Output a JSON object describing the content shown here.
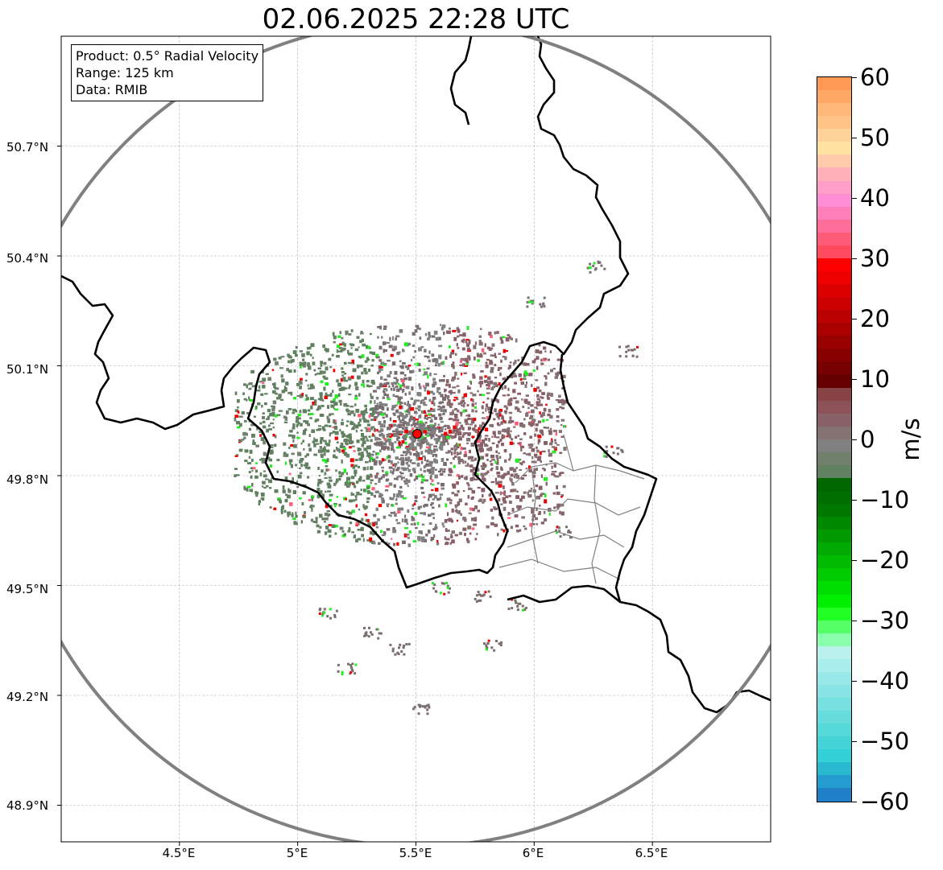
{
  "title": "02.06.2025 22:28 UTC",
  "info_box": {
    "product": "Product: 0.5° Radial Velocity",
    "range": "Range: 125 km",
    "data_source": "Data: RMIB"
  },
  "latitude_labels": [
    "50.7°N",
    "50.4°N",
    "50.1°N",
    "49.8°N",
    "49.5°N",
    "49.2°N",
    "48.9°N"
  ],
  "longitude_labels": [
    "4.5°E",
    "5°E",
    "5.5°E",
    "6°E",
    "6.5°E"
  ],
  "map": {
    "radar_site": {
      "lon": 5.505,
      "lat": 49.914
    },
    "extent": {
      "lon_min": 4.0,
      "lon_max": 7.0,
      "lat_min": 48.8,
      "lat_max": 51.0
    },
    "range_ring_color": "#808080",
    "border_color": "#000000",
    "province_color": "#808080",
    "gridlines": true
  },
  "colorbar": {
    "unit": "m/s",
    "min": -60,
    "max": 60,
    "tick_labels": [
      "60",
      "50",
      "40",
      "30",
      "20",
      "10",
      "0",
      "−10",
      "−20",
      "−30",
      "−40",
      "−50",
      "−60"
    ],
    "colors_top_to_bottom": [
      "#ff9955",
      "#ffa866",
      "#ffb877",
      "#ffc488",
      "#ffd49a",
      "#ffe3a0",
      "#ffcbaa",
      "#ffb0b8",
      "#ff9fc8",
      "#ff8ed6",
      "#ff80b8",
      "#ff6e9a",
      "#ff5a78",
      "#ff4a60",
      "#ff0000",
      "#ee0000",
      "#dd0000",
      "#cc0000",
      "#bb0000",
      "#aa0000",
      "#990000",
      "#880000",
      "#770000",
      "#660000",
      "#884444",
      "#8c5258",
      "#886068",
      "#857272",
      "#808080",
      "#70806c",
      "#608060",
      "#006600",
      "#006e00",
      "#007800",
      "#008800",
      "#009a00",
      "#00aa00",
      "#00bb00",
      "#00cc00",
      "#00dd00",
      "#00ee00",
      "#22ff22",
      "#55ff66",
      "#88ffaa",
      "#bbf2ee",
      "#aaeeee",
      "#99e8e8",
      "#88e4e4",
      "#77e0e0",
      "#66dcdc",
      "#55d8d8",
      "#44d4d8",
      "#33d0d8",
      "#28b8d0",
      "#249cd0",
      "#2080c8"
    ]
  }
}
